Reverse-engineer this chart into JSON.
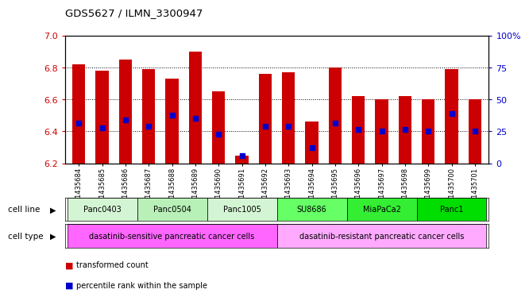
{
  "title": "GDS5627 / ILMN_3300947",
  "samples": [
    "GSM1435684",
    "GSM1435685",
    "GSM1435686",
    "GSM1435687",
    "GSM1435688",
    "GSM1435689",
    "GSM1435690",
    "GSM1435691",
    "GSM1435692",
    "GSM1435693",
    "GSM1435694",
    "GSM1435695",
    "GSM1435696",
    "GSM1435697",
    "GSM1435698",
    "GSM1435699",
    "GSM1435700",
    "GSM1435701"
  ],
  "bar_values": [
    6.82,
    6.78,
    6.85,
    6.79,
    6.73,
    6.9,
    6.65,
    6.25,
    6.76,
    6.77,
    6.46,
    6.8,
    6.62,
    6.6,
    6.62,
    6.6,
    6.79,
    6.6
  ],
  "percentile_values": [
    6.45,
    6.42,
    6.47,
    6.43,
    6.5,
    6.48,
    6.38,
    6.25,
    6.43,
    6.43,
    6.3,
    6.45,
    6.41,
    6.4,
    6.41,
    6.4,
    6.51,
    6.4
  ],
  "bar_color": "#cc0000",
  "dot_color": "#0000cc",
  "ymin": 6.2,
  "ymax": 7.0,
  "yticks": [
    6.2,
    6.4,
    6.6,
    6.8,
    7.0
  ],
  "right_yticks": [
    0,
    25,
    50,
    75,
    100
  ],
  "cell_lines": [
    {
      "name": "Panc0403",
      "start": 0,
      "end": 3,
      "color": "#d4f5d4"
    },
    {
      "name": "Panc0504",
      "start": 3,
      "end": 6,
      "color": "#b8f0b8"
    },
    {
      "name": "Panc1005",
      "start": 6,
      "end": 9,
      "color": "#d4f5d4"
    },
    {
      "name": "SU8686",
      "start": 9,
      "end": 12,
      "color": "#66ff66"
    },
    {
      "name": "MiaPaCa2",
      "start": 12,
      "end": 15,
      "color": "#33ee33"
    },
    {
      "name": "Panc1",
      "start": 15,
      "end": 18,
      "color": "#00dd00"
    }
  ],
  "cell_types": [
    {
      "name": "dasatinib-sensitive pancreatic cancer cells",
      "start": 0,
      "end": 9,
      "color": "#ff66ff"
    },
    {
      "name": "dasatinib-resistant pancreatic cancer cells",
      "start": 9,
      "end": 18,
      "color": "#ffaaff"
    }
  ],
  "legend": [
    {
      "label": "transformed count",
      "color": "#cc0000"
    },
    {
      "label": "percentile rank within the sample",
      "color": "#0000cc"
    }
  ],
  "bg_color": "#ffffff",
  "tick_color_left": "#cc0000",
  "tick_color_right": "#0000cc"
}
